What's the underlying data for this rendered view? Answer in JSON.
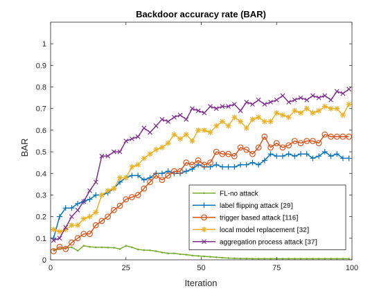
{
  "chart_data": {
    "type": "line",
    "title": "Backdoor accuracy rate (BAR)",
    "xlabel": "Iteration",
    "ylabel": "BAR",
    "xlim": [
      0,
      100
    ],
    "ylim": [
      0,
      1.1
    ],
    "xticks": [
      0,
      25,
      50,
      75,
      100
    ],
    "yticks": [
      0,
      0.1,
      0.2,
      0.3,
      0.4,
      0.5,
      0.6,
      0.7,
      0.8,
      0.9,
      1
    ],
    "ytick_labels": [
      "0",
      "0.1",
      "0.2",
      "0.3",
      "0.4",
      "0.5",
      "0.6",
      "0.7",
      "0.8",
      "0.9",
      "1"
    ],
    "grid": false,
    "legend_position": "bottom-right",
    "series": [
      {
        "name": "FL-no attack",
        "ref": "",
        "color": "#77AC30",
        "marker": "dot",
        "x": [
          1,
          3,
          5,
          7,
          9,
          11,
          13,
          15,
          17,
          19,
          21,
          23,
          25,
          27,
          29,
          31,
          33,
          35,
          37,
          39,
          41,
          43,
          45,
          47,
          49,
          51,
          53,
          55,
          57,
          59,
          61,
          63,
          65,
          67,
          69,
          71,
          73,
          75,
          77,
          79,
          81,
          83,
          85,
          87,
          89,
          91,
          93,
          95,
          97,
          99
        ],
        "y": [
          0.045,
          0.05,
          0.055,
          0.058,
          0.042,
          0.065,
          0.06,
          0.058,
          0.058,
          0.057,
          0.056,
          0.05,
          0.065,
          0.058,
          0.048,
          0.045,
          0.044,
          0.04,
          0.034,
          0.03,
          0.03,
          0.026,
          0.024,
          0.02,
          0.018,
          0.016,
          0.014,
          0.012,
          0.01,
          0.008,
          0.007,
          0.006,
          0.006,
          0.005,
          0.005,
          0.005,
          0.005,
          0.005,
          0.005,
          0.005,
          0.005,
          0.005,
          0.005,
          0.005,
          0.005,
          0.005,
          0.005,
          0.005,
          0.005,
          0.005
        ]
      },
      {
        "name": "label flipping attack",
        "ref": "[29]",
        "color": "#0072BD",
        "marker": "plus",
        "x": [
          1,
          3,
          5,
          7,
          9,
          11,
          13,
          15,
          17,
          19,
          21,
          23,
          25,
          27,
          29,
          31,
          33,
          35,
          37,
          39,
          41,
          43,
          45,
          47,
          49,
          51,
          53,
          55,
          57,
          59,
          61,
          63,
          65,
          67,
          69,
          71,
          73,
          75,
          77,
          79,
          81,
          83,
          85,
          87,
          89,
          91,
          93,
          95,
          97,
          99
        ],
        "y": [
          0.1,
          0.2,
          0.24,
          0.24,
          0.26,
          0.27,
          0.28,
          0.3,
          0.3,
          0.31,
          0.33,
          0.36,
          0.38,
          0.39,
          0.39,
          0.37,
          0.38,
          0.4,
          0.4,
          0.41,
          0.4,
          0.4,
          0.41,
          0.42,
          0.44,
          0.43,
          0.43,
          0.44,
          0.43,
          0.43,
          0.43,
          0.44,
          0.44,
          0.45,
          0.44,
          0.46,
          0.49,
          0.48,
          0.48,
          0.49,
          0.48,
          0.49,
          0.49,
          0.47,
          0.48,
          0.5,
          0.48,
          0.49,
          0.47,
          0.47
        ]
      },
      {
        "name": "trigger based attack",
        "ref": "[116]",
        "color": "#D95319",
        "marker": "circle",
        "x": [
          1,
          3,
          5,
          7,
          9,
          11,
          13,
          15,
          17,
          19,
          21,
          23,
          25,
          27,
          29,
          31,
          33,
          35,
          37,
          39,
          41,
          43,
          45,
          47,
          49,
          51,
          53,
          55,
          57,
          59,
          61,
          63,
          65,
          67,
          69,
          71,
          73,
          75,
          77,
          79,
          81,
          83,
          85,
          87,
          89,
          91,
          93,
          95,
          97,
          99
        ],
        "y": [
          0.04,
          0.06,
          0.05,
          0.08,
          0.1,
          0.12,
          0.12,
          0.16,
          0.18,
          0.2,
          0.23,
          0.25,
          0.28,
          0.29,
          0.3,
          0.33,
          0.36,
          0.39,
          0.37,
          0.39,
          0.41,
          0.41,
          0.45,
          0.44,
          0.46,
          0.44,
          0.45,
          0.5,
          0.49,
          0.49,
          0.48,
          0.52,
          0.51,
          0.49,
          0.52,
          0.57,
          0.52,
          0.54,
          0.52,
          0.53,
          0.55,
          0.54,
          0.55,
          0.55,
          0.54,
          0.58,
          0.57,
          0.57,
          0.57,
          0.57
        ]
      },
      {
        "name": "local model replacement",
        "ref": "[32]",
        "color": "#EDB120",
        "marker": "star",
        "x": [
          1,
          3,
          5,
          7,
          9,
          11,
          13,
          15,
          17,
          19,
          21,
          23,
          25,
          27,
          29,
          31,
          33,
          35,
          37,
          39,
          41,
          43,
          45,
          47,
          49,
          51,
          53,
          55,
          57,
          59,
          61,
          63,
          65,
          67,
          69,
          71,
          73,
          75,
          77,
          79,
          81,
          83,
          85,
          87,
          89,
          91,
          93,
          95,
          97,
          99
        ],
        "y": [
          0.14,
          0.13,
          0.14,
          0.16,
          0.16,
          0.19,
          0.2,
          0.22,
          0.3,
          0.32,
          0.33,
          0.38,
          0.38,
          0.43,
          0.44,
          0.47,
          0.49,
          0.51,
          0.52,
          0.54,
          0.58,
          0.56,
          0.58,
          0.55,
          0.6,
          0.6,
          0.59,
          0.62,
          0.64,
          0.62,
          0.66,
          0.64,
          0.61,
          0.65,
          0.66,
          0.64,
          0.64,
          0.68,
          0.67,
          0.66,
          0.69,
          0.68,
          0.7,
          0.68,
          0.69,
          0.71,
          0.7,
          0.7,
          0.67,
          0.72
        ]
      },
      {
        "name": "aggregation process attack",
        "ref": "[37]",
        "color": "#7E2F8E",
        "marker": "cross",
        "x": [
          1,
          3,
          5,
          7,
          9,
          11,
          13,
          15,
          17,
          19,
          21,
          23,
          25,
          27,
          29,
          31,
          33,
          35,
          37,
          39,
          41,
          43,
          45,
          47,
          49,
          51,
          53,
          55,
          57,
          59,
          61,
          63,
          65,
          67,
          69,
          71,
          73,
          75,
          77,
          79,
          81,
          83,
          85,
          87,
          89,
          91,
          93,
          95,
          97,
          99
        ],
        "y": [
          0.09,
          0.1,
          0.15,
          0.2,
          0.23,
          0.27,
          0.32,
          0.36,
          0.48,
          0.48,
          0.5,
          0.5,
          0.55,
          0.56,
          0.57,
          0.61,
          0.59,
          0.62,
          0.65,
          0.64,
          0.66,
          0.67,
          0.65,
          0.7,
          0.69,
          0.68,
          0.71,
          0.7,
          0.71,
          0.71,
          0.72,
          0.69,
          0.73,
          0.72,
          0.74,
          0.72,
          0.73,
          0.74,
          0.76,
          0.73,
          0.74,
          0.75,
          0.74,
          0.76,
          0.75,
          0.76,
          0.74,
          0.78,
          0.77,
          0.79
        ]
      }
    ]
  }
}
